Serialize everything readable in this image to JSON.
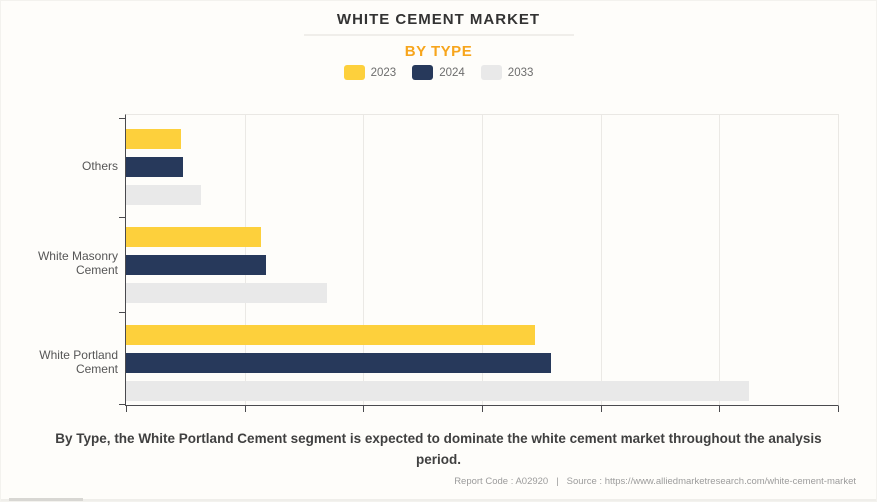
{
  "header": {
    "title": "WHITE CEMENT MARKET",
    "subtitle": "BY TYPE"
  },
  "chart_data": {
    "type": "bar",
    "orientation": "horizontal",
    "title": "WHITE CEMENT MARKET",
    "subtitle": "BY TYPE",
    "categories": [
      "Others",
      "White Masonry Cement",
      "White Portland Cement"
    ],
    "series": [
      {
        "name": "2023",
        "color": "#fdd03c",
        "values": [
          7.7,
          18.9,
          57.4
        ]
      },
      {
        "name": "2024",
        "color": "#27395b",
        "values": [
          8.0,
          19.6,
          59.7
        ]
      },
      {
        "name": "2033",
        "color": "#e9e9e9",
        "values": [
          10.6,
          28.2,
          87.5
        ]
      }
    ],
    "bar_order_top_to_bottom": [
      "2023",
      "2024",
      "2033"
    ],
    "value_unit": "percent of x-axis length (axis shows no numeric tick labels)",
    "xlim": [
      0,
      100
    ],
    "x_gridline_interval": 16.67,
    "x_tick_labels": [],
    "grid": "vertical gridlines only",
    "legend_position": "top-center",
    "xlabel": "",
    "ylabel": ""
  },
  "caption": "By Type, the White Portland Cement segment is expected to dominate the white cement market throughout the analysis period.",
  "footer": {
    "report_code": "Report Code : A02920",
    "separator": "|",
    "source": "Source : https://www.alliedmarketresearch.com/white-cement-market"
  },
  "colors": {
    "accent_orange": "#f7a51c",
    "title_text": "#333333",
    "axis": "#4a4a4e",
    "gridline": "#ebe9e5",
    "background": "#fefdfa",
    "caption_text": "#404040",
    "footer_text": "#9c9c9c"
  }
}
